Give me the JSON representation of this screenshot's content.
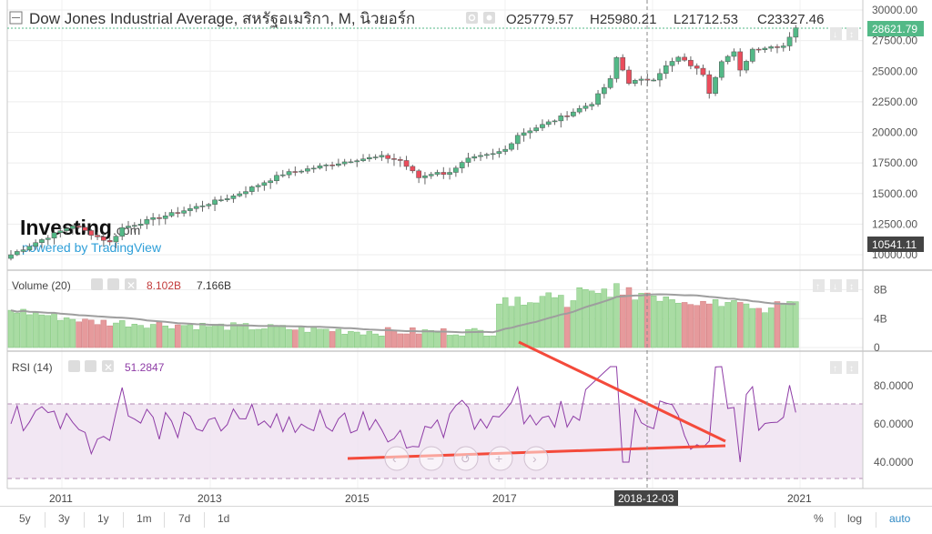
{
  "header": {
    "title": "Dow Jones Industrial Average, สหรัฐอเมริกา, M, นิวยอร์ก",
    "ohlc": [
      {
        "label": "O",
        "value": "25779.57"
      },
      {
        "label": "H",
        "value": "25980.21"
      },
      {
        "label": "L",
        "value": "21712.53"
      },
      {
        "label": "C",
        "value": "23327.46"
      }
    ]
  },
  "price_axis": {
    "ticks": [
      "30000.00",
      "27500.00",
      "25000.00",
      "22500.00",
      "20000.00",
      "17500.00",
      "15000.00",
      "12500.00",
      "10000.00"
    ],
    "last_price": "28621.79",
    "marker_price": "10541.11"
  },
  "time_axis": {
    "ticks": [
      "2011",
      "2013",
      "2015",
      "2017",
      "2021"
    ],
    "crosshair_label": "2018-12-03"
  },
  "watermark": {
    "brand": "Investing",
    "domain": ".com",
    "powered_by": "powered by TradingView"
  },
  "volume_pane": {
    "label": "Volume (20)",
    "value_1": "8.102B",
    "value_2": "7.166B",
    "ticks": [
      "8B",
      "4B",
      "0"
    ]
  },
  "rsi_pane": {
    "label": "RSI (14)",
    "value": "51.2847",
    "ticks": [
      "80.0000",
      "60.0000",
      "40.0000"
    ]
  },
  "timeframes": [
    "5y",
    "3y",
    "1y",
    "1m",
    "7d",
    "1d"
  ],
  "bottom_right": {
    "percent": "%",
    "log": "log",
    "auto": "auto"
  },
  "colors": {
    "up": "#53b987",
    "down": "#eb4d5c",
    "volume_up": "#a9dca3",
    "volume_down": "#e69a9c",
    "rsi": "#8e3ca6",
    "drawing": "#f44a3b",
    "accent": "#2f89c4"
  },
  "chart_data": [
    {
      "type": "candlestick",
      "title": "Dow Jones Industrial Average, สหรัฐอเมริกา, M, นิวยอร์ก",
      "interval": "monthly",
      "x_range": [
        "2010-05",
        "2019-12"
      ],
      "ylim": [
        10000,
        30000
      ],
      "scale": "linear",
      "grid": true,
      "milestones": [
        {
          "date": "2010-06",
          "close": 10000
        },
        {
          "date": "2013-01",
          "close": 13860
        },
        {
          "date": "2015-05",
          "close": 18010
        },
        {
          "date": "2016-02",
          "close": 16500
        },
        {
          "date": "2018-01",
          "close": 26149
        },
        {
          "date": "2018-12",
          "close": 23327.46,
          "open": 25779.57,
          "high": 25980.21,
          "low": 21712.53
        },
        {
          "date": "2019-11",
          "close": 28621.79
        }
      ]
    },
    {
      "type": "bar",
      "title": "Volume (20)",
      "ylim": [
        0,
        10
      ],
      "unit": "B",
      "series": [
        {
          "values_range": [
            2,
            8.5
          ]
        },
        {
          "moving_average_last": 7.166
        }
      ]
    },
    {
      "type": "line",
      "title": "RSI (14)",
      "ylim": [
        28,
        95
      ],
      "bands": [
        30,
        70
      ],
      "last": 51.2847
    }
  ]
}
